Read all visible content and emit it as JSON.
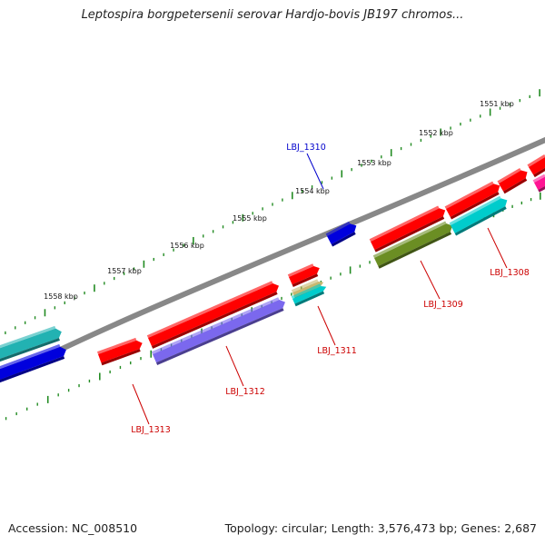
{
  "title": "Leptospira borgpetersenii serovar Hardjo-bovis JB197 chromos...",
  "accession_text": "Accession: NC_008510",
  "summary_text": "Topology: circular; Length: 3,576,473 bp; Genes: 2,687",
  "tick_labels": [
    "1551 kbp",
    "1552 kbp",
    "1553 kbp",
    "1554 kbp",
    "1555 kbp",
    "1556 kbp",
    "1557 kbp",
    "1558 kbp"
  ],
  "gene_labels": [
    {
      "text": "LBJ_1310",
      "color": "#0000cc"
    },
    {
      "text": "LBJ_1308",
      "color": "#cc0000"
    },
    {
      "text": "LBJ_1309",
      "color": "#cc0000"
    },
    {
      "text": "LBJ_1311",
      "color": "#cc0000"
    },
    {
      "text": "LBJ_1312",
      "color": "#cc0000"
    },
    {
      "text": "LBJ_1313",
      "color": "#cc0000"
    }
  ],
  "colors": {
    "backbone": "#888888",
    "tick": "#228b22",
    "forward_cds": "#ff0000",
    "blue_cds": "#0000dd",
    "cyan_cds": "#00cccc",
    "teal_cds": "#22b2b2",
    "olive_cds": "#6b8e23",
    "purple_cds": "#7b68ee",
    "tan_cds": "#c8b870",
    "magenta_cds": "#ff1493"
  }
}
